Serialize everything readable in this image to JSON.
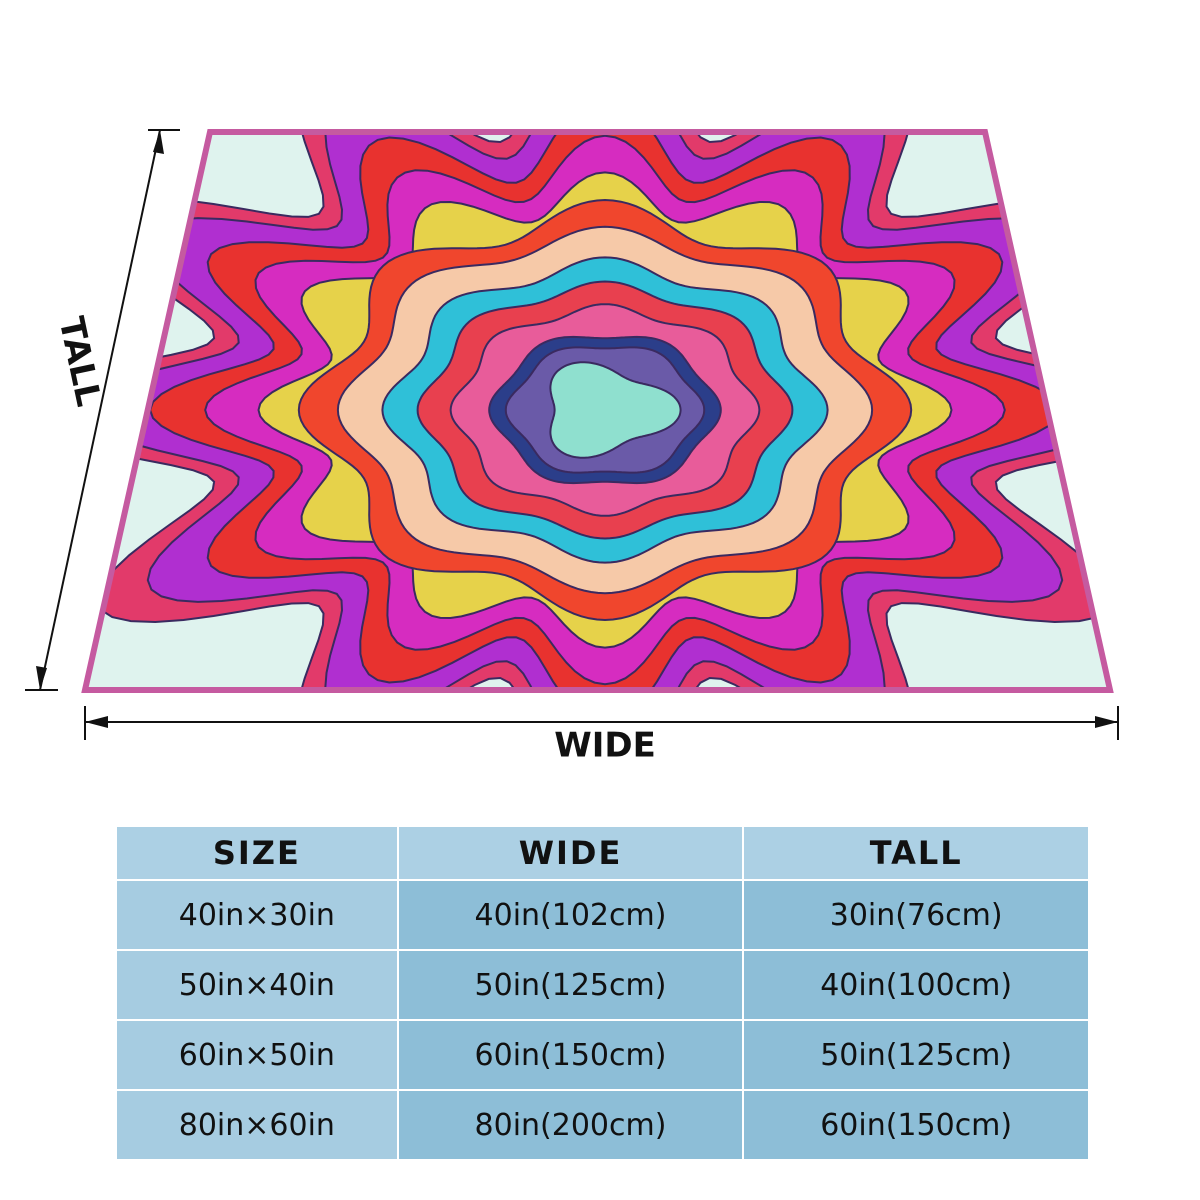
{
  "dimension_labels": {
    "tall": "TALL",
    "wide": "WIDE"
  },
  "table": {
    "header": [
      "SIZE",
      "WIDE",
      "TALL"
    ],
    "rows": [
      [
        "40in×30in",
        "40in(102cm)",
        "30in(76cm)"
      ],
      [
        "50in×40in",
        "50in(125cm)",
        "40in(100cm)"
      ],
      [
        "60in×50in",
        "60in(150cm)",
        "50in(125cm)"
      ],
      [
        "80in×60in",
        "80in(200cm)",
        "60in(150cm)"
      ]
    ]
  }
}
